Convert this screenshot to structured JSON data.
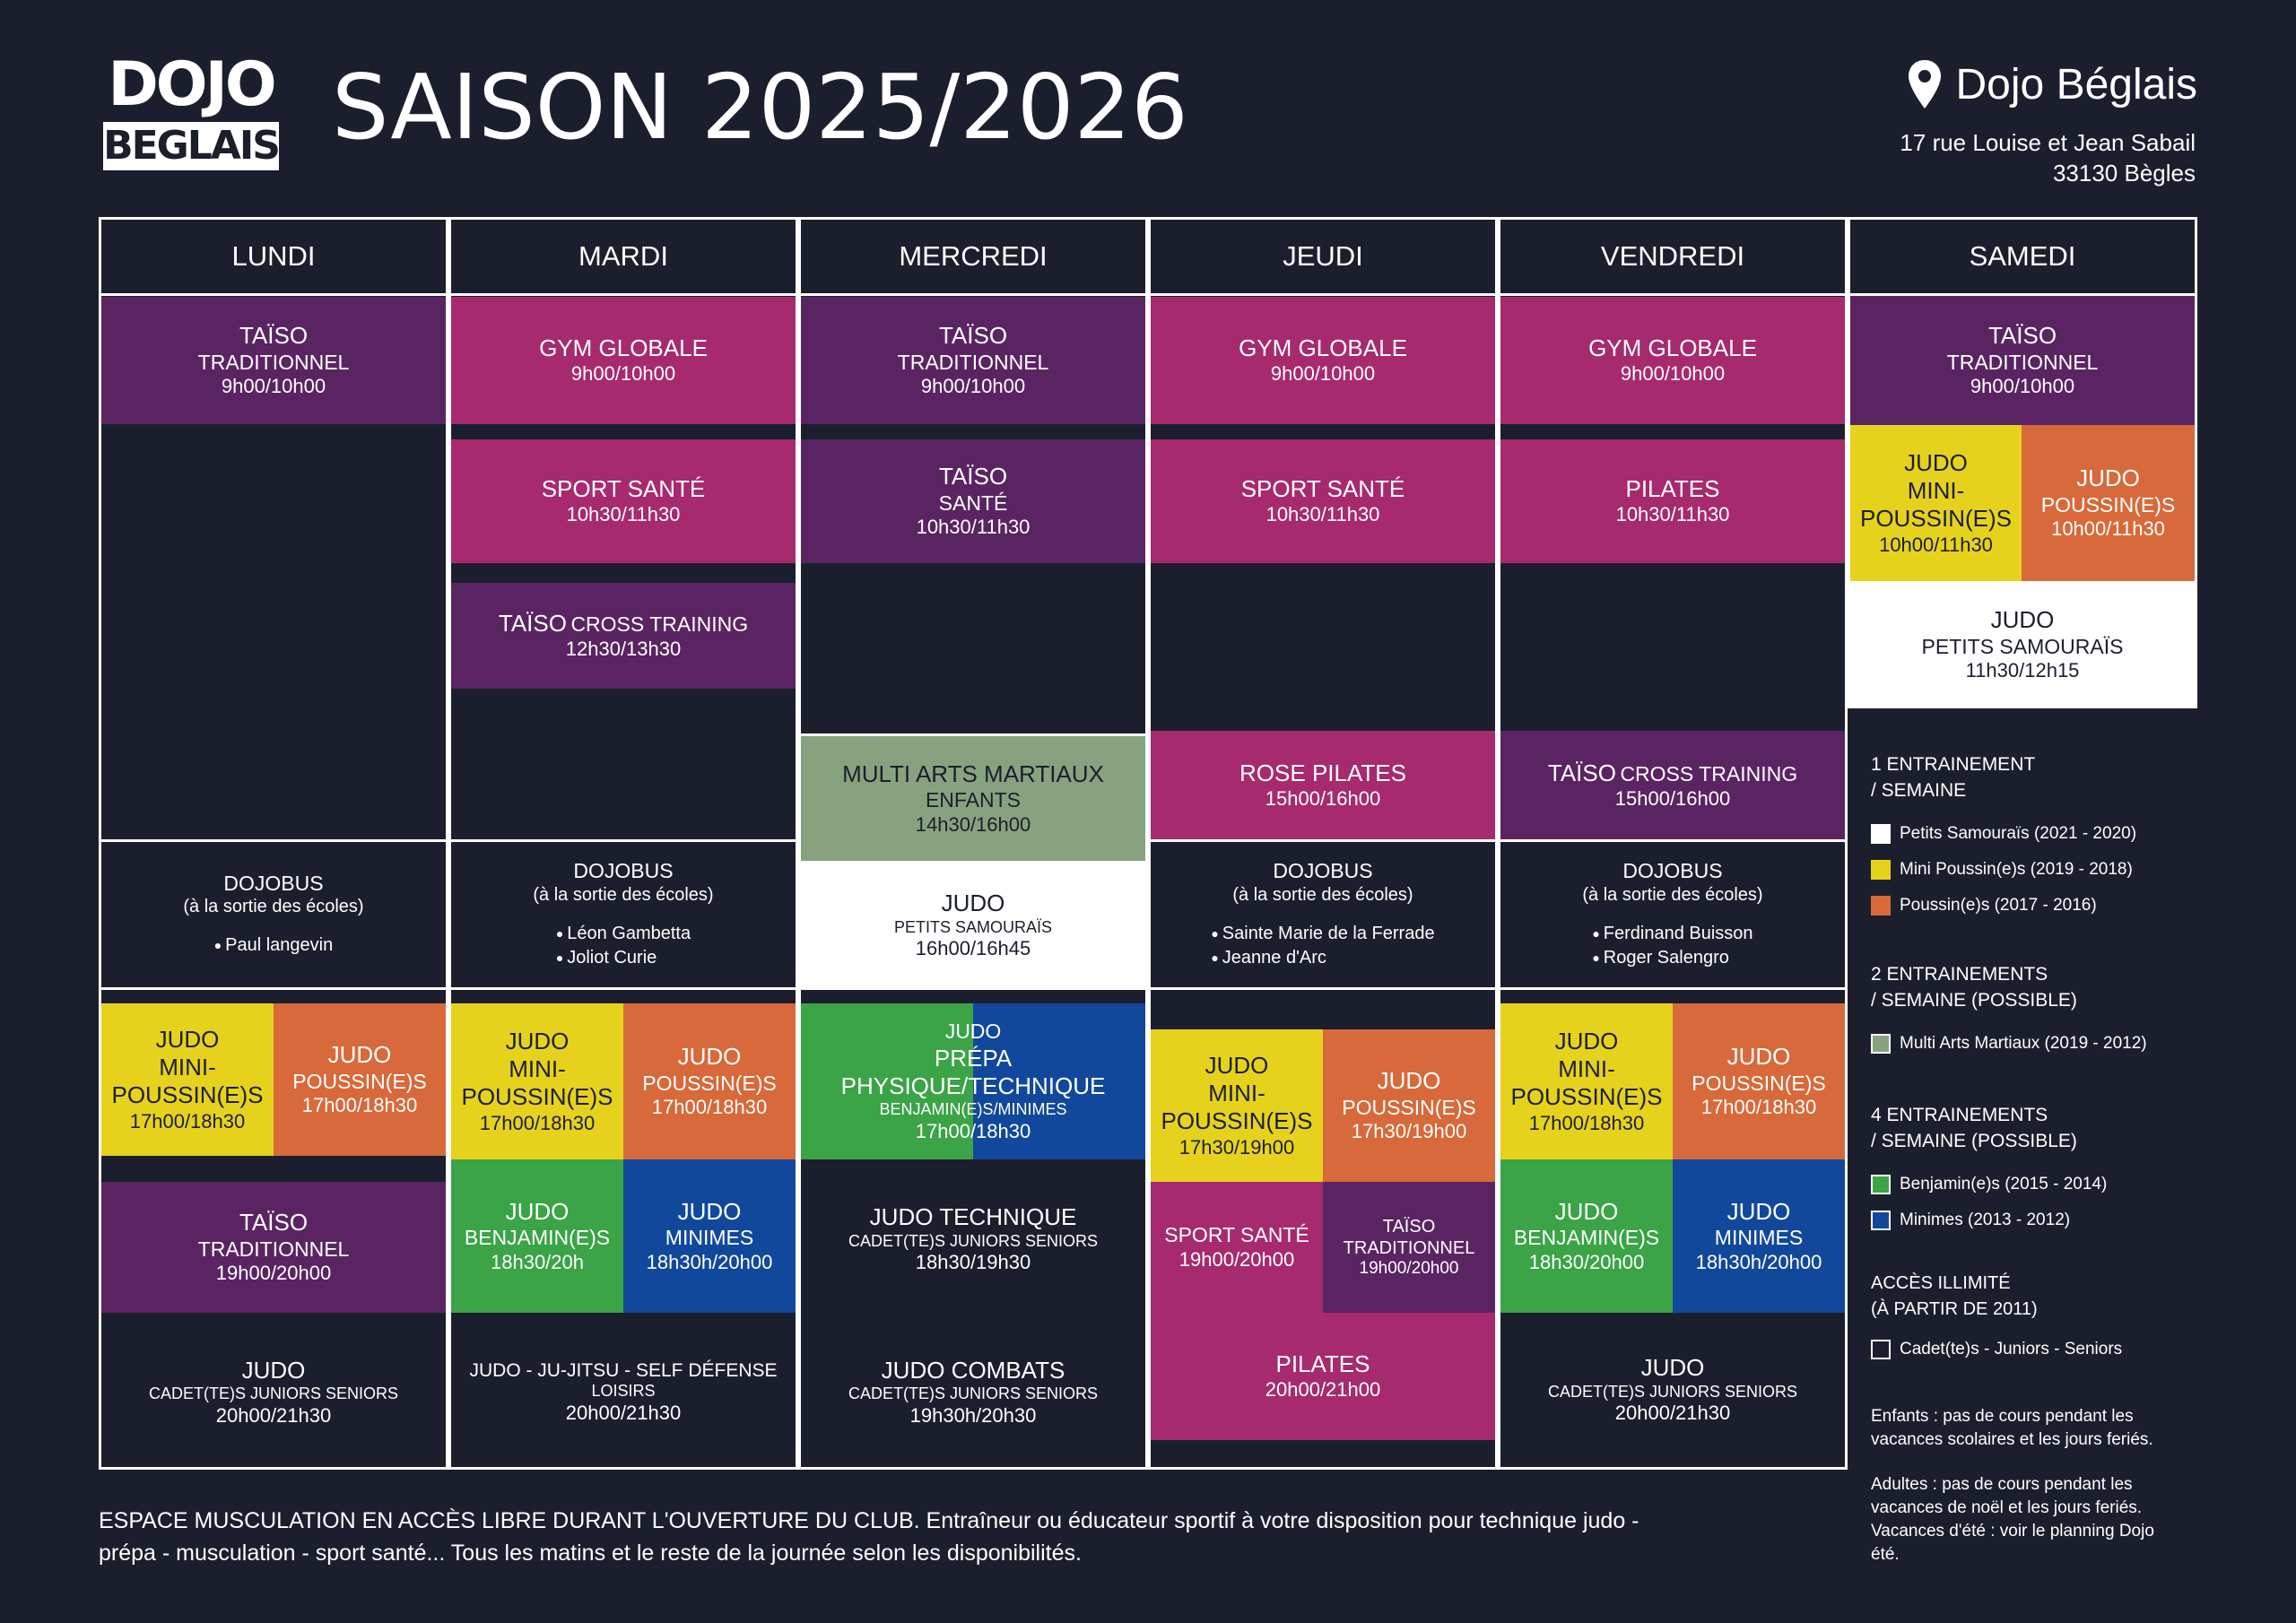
{
  "header": {
    "logo_top": "DOJO",
    "logo_bottom": "BEGLAIS",
    "season": "SAISON 2025/2026",
    "venue": "Dojo Béglais",
    "pin_icon": "map-pin-icon",
    "address_line1": "17 rue Louise et Jean Sabail",
    "address_line2": "33130 Bègles"
  },
  "days": [
    "LUNDI",
    "MARDI",
    "MERCREDI",
    "JEUDI",
    "VENDREDI",
    "SAMEDI"
  ],
  "classes": {
    "lun_taiso": {
      "title": "TAÏSO",
      "sub": "TRADITIONNEL",
      "time": "9h00/10h00"
    },
    "lun_dojobus": {
      "title": "DOJOBUS",
      "sub": "(à la sortie des écoles)",
      "schools": [
        "Paul langevin"
      ]
    },
    "lun_mini": {
      "t1": "JUDO",
      "t2": "MINI-",
      "t3": "POUSSIN(E)S",
      "time": "17h00/18h30"
    },
    "lun_pous": {
      "t1": "JUDO",
      "t2": "POUSSIN(E)S",
      "time": "17h00/18h30"
    },
    "lun_taiso2": {
      "title": "TAÏSO",
      "sub": "TRADITIONNEL",
      "time": "19h00/20h00"
    },
    "lun_judo": {
      "title": "JUDO",
      "sub": "CADET(TE)S JUNIORS SENIORS",
      "time": "20h00/21h30"
    },
    "mar_gym": {
      "title": "GYM GLOBALE",
      "time": "9h00/10h00"
    },
    "mar_sport": {
      "title": "SPORT SANTÉ",
      "time": "10h30/11h30"
    },
    "mar_cross": {
      "title_a": "TAÏSO",
      "title_b": "CROSS TRAINING",
      "time": "12h30/13h30"
    },
    "mar_dojobus": {
      "title": "DOJOBUS",
      "sub": "(à la sortie des écoles)",
      "schools": [
        "Léon Gambetta",
        "Joliot Curie"
      ]
    },
    "mar_mini": {
      "t1": "JUDO",
      "t2": "MINI-",
      "t3": "POUSSIN(E)S",
      "time": "17h00/18h30"
    },
    "mar_pous": {
      "t1": "JUDO",
      "t2": "POUSSIN(E)S",
      "time": "17h00/18h30"
    },
    "mar_benj": {
      "t1": "JUDO",
      "t2": "BENJAMIN(E)S",
      "time": "18h30/20h"
    },
    "mar_min": {
      "t1": "JUDO",
      "t2": "MINIMES",
      "time": "18h30h/20h00"
    },
    "mar_jj": {
      "title": "JUDO - JU-JITSU - SELF DÉFENSE",
      "sub": "LOISIRS",
      "time": "20h00/21h30"
    },
    "mer_taiso": {
      "title": "TAÏSO",
      "sub": "TRADITIONNEL",
      "time": "9h00/10h00"
    },
    "mer_sante": {
      "title": "TAÏSO",
      "sub": "SANTÉ",
      "time": "10h30/11h30"
    },
    "mer_multi": {
      "title": "MULTI ARTS MARTIAUX",
      "sub": "ENFANTS",
      "time": "14h30/16h00"
    },
    "mer_petits": {
      "title": "JUDO",
      "sub": "PETITS SAMOURAÏS",
      "time": "16h00/16h45"
    },
    "mer_prepa": {
      "t1": "JUDO",
      "t2": "PRÉPA PHYSIQUE/TECHNIQUE",
      "t3": "BENJAMIN(E)S/MINIMES",
      "time": "17h00/18h30"
    },
    "mer_tech": {
      "title": "JUDO TECHNIQUE",
      "sub": "CADET(TE)S JUNIORS SENIORS",
      "time": "18h30/19h30"
    },
    "mer_comb": {
      "title": "JUDO COMBATS",
      "sub": "CADET(TE)S JUNIORS SENIORS",
      "time": "19h30h/20h30"
    },
    "jeu_gym": {
      "title": "GYM GLOBALE",
      "time": "9h00/10h00"
    },
    "jeu_sport": {
      "title": "SPORT SANTÉ",
      "time": "10h30/11h30"
    },
    "jeu_rose": {
      "title": "ROSE PILATES",
      "time": "15h00/16h00"
    },
    "jeu_dojobus": {
      "title": "DOJOBUS",
      "sub": "(à la sortie des écoles)",
      "schools": [
        "Sainte Marie de la Ferrade",
        "Jeanne d'Arc"
      ]
    },
    "jeu_mini": {
      "t1": "JUDO",
      "t2": "MINI-",
      "t3": "POUSSIN(E)S",
      "time": "17h30/19h00"
    },
    "jeu_pous": {
      "t1": "JUDO",
      "t2": "POUSSIN(E)S",
      "time": "17h30/19h00"
    },
    "jeu_sport2": {
      "title": "SPORT SANTÉ",
      "time": "19h00/20h00"
    },
    "jeu_taiso": {
      "title": "TAÏSO",
      "sub": "TRADITIONNEL",
      "time": "19h00/20h00"
    },
    "jeu_pilates": {
      "title": "PILATES",
      "time": "20h00/21h00"
    },
    "ven_gym": {
      "title": "GYM GLOBALE",
      "time": "9h00/10h00"
    },
    "ven_pilates": {
      "title": "PILATES",
      "time": "10h30/11h30"
    },
    "ven_cross": {
      "title_a": "TAÏSO",
      "title_b": "CROSS TRAINING",
      "time": "15h00/16h00"
    },
    "ven_dojobus": {
      "title": "DOJOBUS",
      "sub": "(à la sortie des écoles)",
      "schools": [
        "Ferdinand Buisson",
        "Roger Salengro"
      ]
    },
    "ven_mini": {
      "t1": "JUDO",
      "t2": "MINI-",
      "t3": "POUSSIN(E)S",
      "time": "17h00/18h30"
    },
    "ven_pous": {
      "t1": "JUDO",
      "t2": "POUSSIN(E)S",
      "time": "17h00/18h30"
    },
    "ven_benj": {
      "t1": "JUDO",
      "t2": "BENJAMIN(E)S",
      "time": "18h30/20h00"
    },
    "ven_min": {
      "t1": "JUDO",
      "t2": "MINIMES",
      "time": "18h30h/20h00"
    },
    "ven_judo": {
      "title": "JUDO",
      "sub": "CADET(TE)S JUNIORS SENIORS",
      "time": "20h00/21h30"
    },
    "sam_taiso": {
      "title": "TAÏSO",
      "sub": "TRADITIONNEL",
      "time": "9h00/10h00"
    },
    "sam_mini": {
      "t1": "JUDO",
      "t2": "MINI-",
      "t3": "POUSSIN(E)S",
      "time": "10h00/11h30"
    },
    "sam_pous": {
      "t1": "JUDO",
      "t2": "POUSSIN(E)S",
      "time": "10h00/11h30"
    },
    "sam_petits": {
      "title": "JUDO",
      "sub": "PETITS SAMOURAÏS",
      "time": "11h30/12h15"
    }
  },
  "legend": {
    "g1_title_a": "1 ENTRAINEMENT",
    "g1_title_b": "/ SEMAINE",
    "g1_items": [
      "Petits Samouraïs (2021 - 2020)",
      "Mini Poussin(e)s (2019 - 2018)",
      "Poussin(e)s (2017 - 2016)"
    ],
    "g2_title_a": "2 ENTRAINEMENTS",
    "g2_title_b": "/ SEMAINE (POSSIBLE)",
    "g2_items": [
      "Multi Arts Martiaux (2019 - 2012)"
    ],
    "g3_title_a": "4 ENTRAINEMENTS",
    "g3_title_b": "/ SEMAINE (POSSIBLE)",
    "g3_items": [
      "Benjamin(e)s (2015 - 2014)",
      "Minimes (2013 - 2012)"
    ],
    "g4_title_a": "ACCÈS ILLIMITÉ",
    "g4_title_b": "(À PARTIR DE 2011)",
    "g4_items": [
      "Cadet(te)s - Juniors - Seniors"
    ],
    "note1_a": "Enfants : pas de cours pendant les",
    "note1_b": "vacances scolaires et les jours feriés.",
    "note2_a": "Adultes : pas de cours pendant les",
    "note2_b": "vacances de noël et les jours feriés.",
    "note2_c": "Vacances d'été : voir le planning Dojo",
    "note2_d": "été."
  },
  "colors": {
    "background": "#1b1f2d",
    "purple": "#5a2463",
    "magenta": "#a72a6f",
    "yellow": "#e6d21d",
    "orange": "#d8693a",
    "green": "#3aa446",
    "blue": "#12489c",
    "sage": "#88a17f"
  },
  "footer": {
    "line1": "ESPACE MUSCULATION EN ACCÈS LIBRE DURANT L'OUVERTURE DU CLUB. Entraîneur ou éducateur sportif à votre disposition pour technique judo -",
    "line2": "prépa - musculation - sport santé... Tous les matins et le reste de la journée selon les disponibilités."
  }
}
